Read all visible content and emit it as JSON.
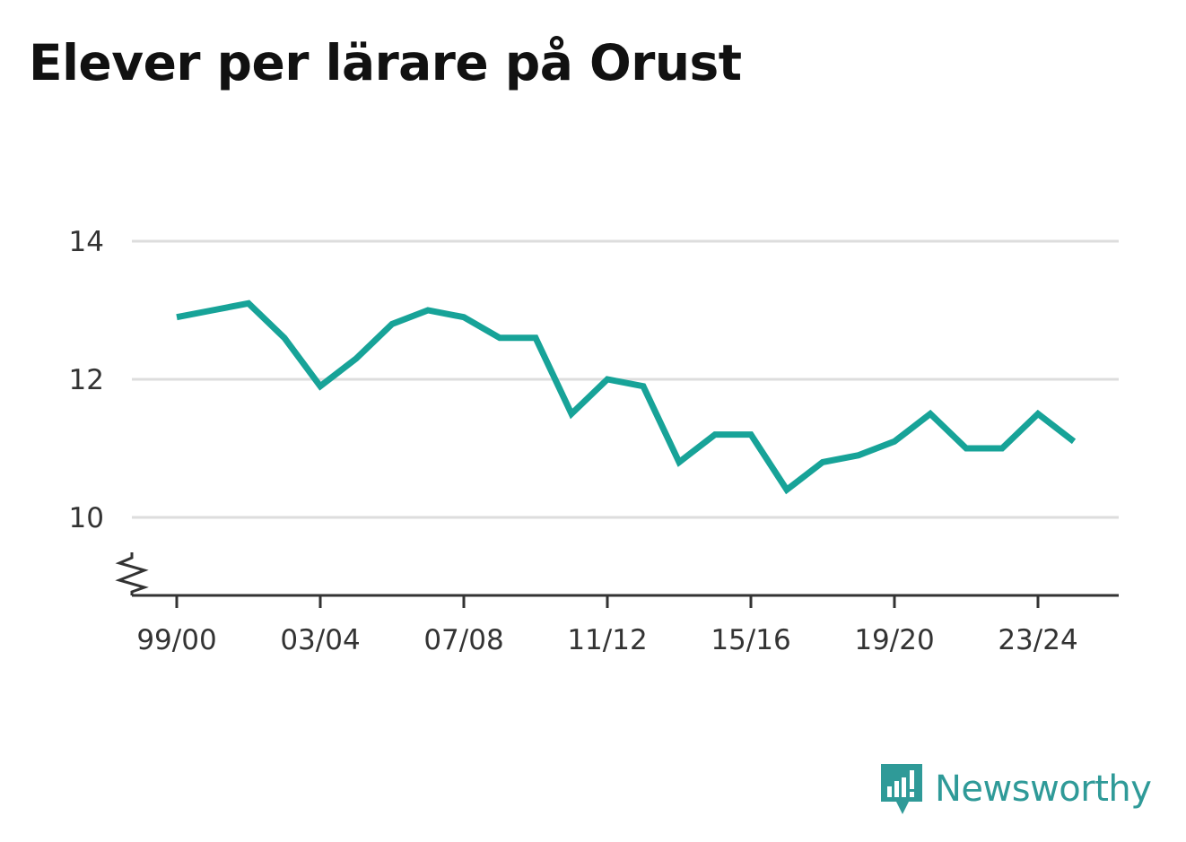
{
  "title": "Elever per lärare på Orust",
  "brand": {
    "name": "Newsworthy",
    "logo_icon": "newsworthy-logo-icon",
    "color": "#2f9a98"
  },
  "colors": {
    "line": "#17a398",
    "grid": "#dddddd",
    "axis": "#333333",
    "text": "#333333"
  },
  "chart_data": {
    "type": "line",
    "title": "Elever per lärare på Orust",
    "xlabel": "",
    "ylabel": "",
    "x": [
      "99/00",
      "00/01",
      "01/02",
      "02/03",
      "03/04",
      "04/05",
      "05/06",
      "06/07",
      "07/08",
      "08/09",
      "09/10",
      "10/11",
      "11/12",
      "12/13",
      "13/14",
      "14/15",
      "15/16",
      "16/17",
      "17/18",
      "18/19",
      "19/20",
      "20/21",
      "21/22",
      "22/23",
      "23/24",
      "24/25"
    ],
    "series": [
      {
        "values": [
          12.9,
          13.0,
          13.1,
          12.6,
          11.9,
          12.3,
          12.8,
          13.0,
          12.9,
          12.6,
          12.6,
          11.5,
          12.0,
          11.9,
          10.8,
          11.2,
          11.2,
          10.4,
          10.8,
          10.9,
          11.1,
          11.5,
          11.0,
          11.0,
          11.5,
          11.1
        ]
      }
    ],
    "x_tick_labels": [
      "99/00",
      "03/04",
      "07/08",
      "11/12",
      "15/16",
      "19/20",
      "23/24"
    ],
    "y_ticks": [
      10,
      12,
      14
    ],
    "ylim": [
      10,
      14
    ],
    "y_axis_break": true,
    "grid": true,
    "legend": "none"
  }
}
